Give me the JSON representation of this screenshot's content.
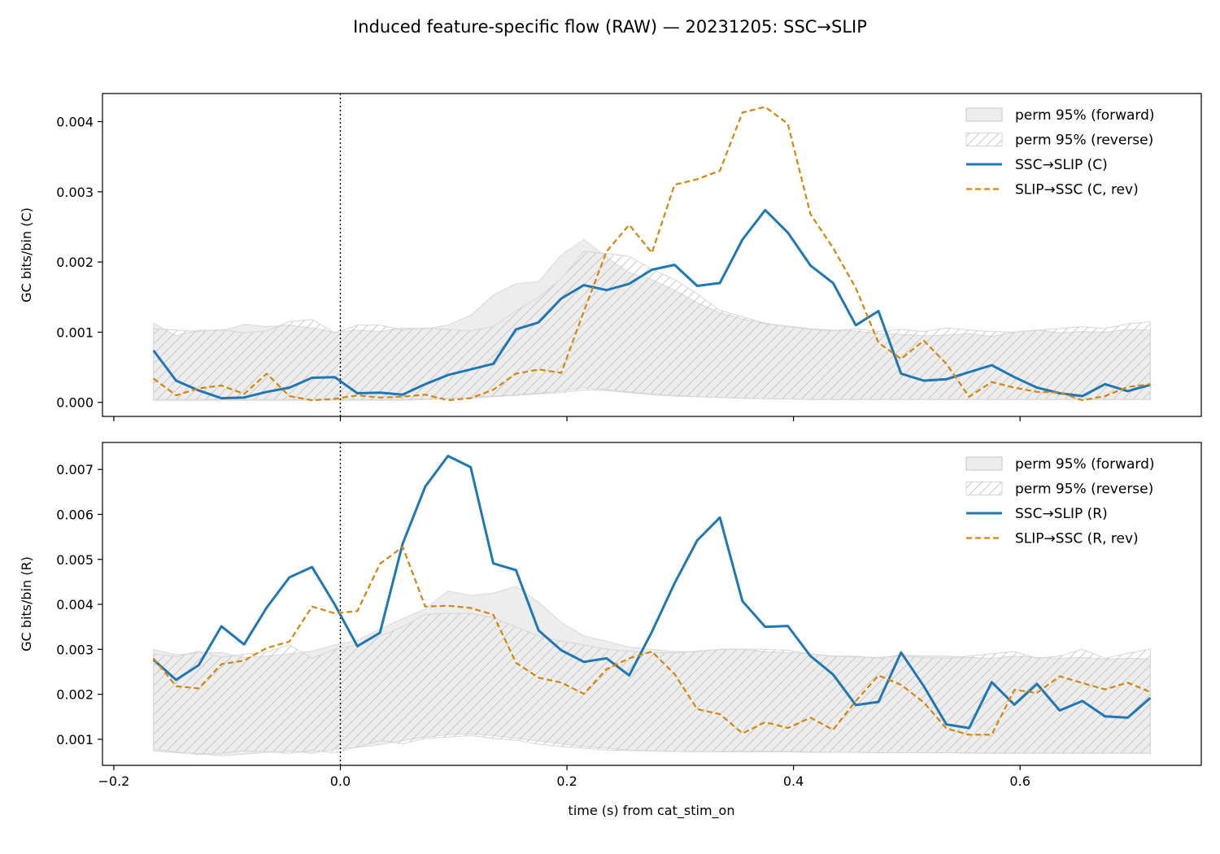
{
  "figure": {
    "title": "Induced feature-specific flow (RAW) — 20231205: SSC→SLIP",
    "xlabel": "time (s) from cat_stim_on"
  },
  "chart_data": [
    {
      "type": "line",
      "ylabel": "GC bits/bin (C)",
      "xlim": [
        -0.21,
        0.76
      ],
      "ylim": [
        -0.0002,
        0.0044
      ],
      "x_ticks": [
        -0.2,
        0.0,
        0.2,
        0.4,
        0.6
      ],
      "x_tick_labels": [
        "",
        "",
        "",
        "",
        ""
      ],
      "y_ticks": [
        0.0,
        0.001,
        0.002,
        0.003,
        0.004
      ],
      "y_tick_labels": [
        "0.000",
        "0.001",
        "0.002",
        "0.003",
        "0.004"
      ],
      "vline_x": 0.0,
      "legend_position": "upper-right",
      "x": [
        -0.165,
        -0.145,
        -0.125,
        -0.105,
        -0.085,
        -0.065,
        -0.045,
        -0.025,
        -0.005,
        0.015,
        0.035,
        0.055,
        0.075,
        0.095,
        0.115,
        0.135,
        0.155,
        0.175,
        0.195,
        0.215,
        0.235,
        0.255,
        0.275,
        0.295,
        0.315,
        0.335,
        0.355,
        0.375,
        0.395,
        0.415,
        0.435,
        0.455,
        0.475,
        0.495,
        0.515,
        0.535,
        0.555,
        0.575,
        0.595,
        0.615,
        0.635,
        0.655,
        0.675,
        0.695,
        0.715
      ],
      "bands": [
        {
          "name": "perm 95% (forward)",
          "style": "fill",
          "lower": [
            4e-05,
            4e-05,
            4e-05,
            4e-05,
            4e-05,
            4e-05,
            4e-05,
            4e-05,
            4e-05,
            4e-05,
            4e-05,
            4e-05,
            5e-05,
            6e-05,
            7e-05,
            9e-05,
            0.00011,
            0.00013,
            0.00016,
            0.00021,
            0.00018,
            0.00015,
            0.00012,
            0.0001,
            8e-05,
            7e-05,
            6e-05,
            5e-05,
            5e-05,
            4e-05,
            4e-05,
            4e-05,
            4e-05,
            4e-05,
            4e-05,
            4e-05,
            4e-05,
            4e-05,
            4e-05,
            4e-05,
            4e-05,
            4e-05,
            4e-05,
            4e-05,
            4e-05
          ],
          "upper": [
            0.00113,
            0.00095,
            0.00103,
            0.00102,
            0.00111,
            0.00108,
            0.0011,
            0.00106,
            0.001,
            0.00103,
            0.00101,
            0.00106,
            0.00105,
            0.0011,
            0.00124,
            0.00153,
            0.00169,
            0.00172,
            0.0021,
            0.00232,
            0.00207,
            0.00185,
            0.00175,
            0.0016,
            0.00142,
            0.00128,
            0.00119,
            0.00112,
            0.00109,
            0.00105,
            0.00103,
            0.00102,
            0.00098,
            0.00097,
            0.00095,
            0.00096,
            0.00098,
            0.00094,
            0.001,
            0.00103,
            0.00099,
            0.00101,
            0.001,
            0.00104,
            0.00103
          ]
        },
        {
          "name": "perm 95% (reverse)",
          "style": "hatch",
          "lower": [
            3e-05,
            3e-05,
            3e-05,
            3e-05,
            3e-05,
            3e-05,
            3e-05,
            3e-05,
            3e-05,
            3e-05,
            3e-05,
            3e-05,
            4e-05,
            5e-05,
            6e-05,
            8e-05,
            0.0001,
            0.00012,
            0.00014,
            0.00018,
            0.00017,
            0.00014,
            0.00011,
            9e-05,
            8e-05,
            7e-05,
            6e-05,
            5e-05,
            5e-05,
            4e-05,
            4e-05,
            4e-05,
            4e-05,
            4e-05,
            4e-05,
            4e-05,
            4e-05,
            4e-05,
            4e-05,
            4e-05,
            4e-05,
            4e-05,
            4e-05,
            4e-05,
            4e-05
          ],
          "upper": [
            0.00105,
            0.00103,
            0.00101,
            0.00104,
            0.00099,
            0.00102,
            0.00115,
            0.00118,
            0.00099,
            0.0011,
            0.0011,
            0.00103,
            0.00106,
            0.00104,
            0.00102,
            0.00108,
            0.0013,
            0.0015,
            0.00176,
            0.00215,
            0.00212,
            0.00208,
            0.0019,
            0.00175,
            0.00155,
            0.00131,
            0.00122,
            0.00113,
            0.00108,
            0.00104,
            0.00102,
            0.00105,
            0.00101,
            0.00104,
            0.00101,
            0.00106,
            0.00103,
            0.00101,
            0.001,
            0.00103,
            0.00105,
            0.00108,
            0.00105,
            0.00112,
            0.00115
          ]
        }
      ],
      "series": [
        {
          "name": "SSC→SLIP (C)",
          "color": "#1f77b4",
          "dash": "solid",
          "values": [
            0.00074,
            0.00031,
            0.00017,
            6e-05,
            7e-05,
            0.00015,
            0.00021,
            0.00035,
            0.00036,
            0.00013,
            0.00014,
            0.00011,
            0.00026,
            0.00039,
            0.00047,
            0.00055,
            0.00104,
            0.00114,
            0.00148,
            0.00167,
            0.0016,
            0.00169,
            0.00189,
            0.00196,
            0.00166,
            0.0017,
            0.00232,
            0.00274,
            0.00242,
            0.00195,
            0.0017,
            0.0011,
            0.0013,
            0.00041,
            0.00031,
            0.00033,
            0.00043,
            0.00053,
            0.00036,
            0.00021,
            0.00013,
            9e-05,
            0.00026,
            0.00016,
            0.00025
          ]
        },
        {
          "name": "SLIP→SSC (C, rev)",
          "color": "#d4860b",
          "dash": "dashed",
          "values": [
            0.00034,
            0.0001,
            0.0002,
            0.00024,
            0.00012,
            0.00041,
            9e-05,
            3e-05,
            5e-05,
            0.0001,
            7e-05,
            8e-05,
            0.00011,
            3e-05,
            6e-05,
            0.00018,
            0.00041,
            0.00047,
            0.00042,
            0.0013,
            0.00215,
            0.00253,
            0.00213,
            0.0031,
            0.00318,
            0.0033,
            0.00413,
            0.00421,
            0.00397,
            0.00268,
            0.0022,
            0.00163,
            0.00085,
            0.00062,
            0.00088,
            0.00055,
            8e-05,
            0.00029,
            0.00021,
            0.00015,
            0.00014,
            3e-05,
            9e-05,
            0.00022,
            0.00026
          ]
        }
      ]
    },
    {
      "type": "line",
      "ylabel": "GC bits/bin (R)",
      "xlim": [
        -0.21,
        0.76
      ],
      "ylim": [
        0.00042,
        0.0076
      ],
      "x_ticks": [
        -0.2,
        0.0,
        0.2,
        0.4,
        0.6
      ],
      "x_tick_labels": [
        "−0.2",
        "0.0",
        "0.2",
        "0.4",
        "0.6"
      ],
      "y_ticks": [
        0.001,
        0.002,
        0.003,
        0.004,
        0.005,
        0.006,
        0.007
      ],
      "y_tick_labels": [
        "0.001",
        "0.002",
        "0.003",
        "0.004",
        "0.005",
        "0.006",
        "0.007"
      ],
      "vline_x": 0.0,
      "legend_position": "upper-right",
      "x": [
        -0.165,
        -0.145,
        -0.125,
        -0.105,
        -0.085,
        -0.065,
        -0.045,
        -0.025,
        -0.005,
        0.015,
        0.035,
        0.055,
        0.075,
        0.095,
        0.115,
        0.135,
        0.155,
        0.175,
        0.195,
        0.215,
        0.235,
        0.255,
        0.275,
        0.295,
        0.315,
        0.335,
        0.355,
        0.375,
        0.395,
        0.415,
        0.435,
        0.455,
        0.475,
        0.495,
        0.515,
        0.535,
        0.555,
        0.575,
        0.595,
        0.615,
        0.635,
        0.655,
        0.675,
        0.695,
        0.715
      ],
      "bands": [
        {
          "name": "perm 95% (forward)",
          "style": "fill",
          "lower": [
            0.00074,
            0.0007,
            0.00068,
            0.00063,
            0.00067,
            0.00071,
            0.00074,
            0.00069,
            0.00078,
            0.00082,
            0.00088,
            0.00097,
            0.00105,
            0.0011,
            0.00112,
            0.00108,
            0.00102,
            0.00096,
            0.0009,
            0.00083,
            0.0008,
            0.00076,
            0.00074,
            0.00073,
            0.00072,
            0.00073,
            0.00074,
            0.00073,
            0.00073,
            0.00072,
            0.00071,
            0.00071,
            0.0007,
            0.0007,
            0.0007,
            0.0007,
            0.00069,
            0.00069,
            0.00069,
            0.00069,
            0.00069,
            0.00069,
            0.00069,
            0.00069,
            0.00069
          ],
          "upper": [
            0.003,
            0.00288,
            0.00292,
            0.00293,
            0.00282,
            0.00285,
            0.0029,
            0.00296,
            0.0031,
            0.0032,
            0.00345,
            0.00368,
            0.0039,
            0.0043,
            0.0042,
            0.00425,
            0.0044,
            0.00405,
            0.0036,
            0.0033,
            0.00318,
            0.00305,
            0.003,
            0.00295,
            0.00295,
            0.003,
            0.003,
            0.00295,
            0.00293,
            0.0029,
            0.00285,
            0.00285,
            0.0028,
            0.00288,
            0.00285,
            0.00285,
            0.00282,
            0.0028,
            0.00285,
            0.00282,
            0.0028,
            0.00282,
            0.00278,
            0.0028,
            0.00279
          ]
        },
        {
          "name": "perm 95% (reverse)",
          "style": "hatch",
          "lower": [
            0.00078,
            0.00072,
            0.00066,
            0.00069,
            0.00074,
            0.00072,
            0.00069,
            0.00075,
            0.0007,
            0.00083,
            0.00097,
            0.0009,
            0.00102,
            0.00105,
            0.00108,
            0.00102,
            0.00098,
            0.00089,
            0.00084,
            0.0008,
            0.00076,
            0.00075,
            0.00074,
            0.00073,
            0.00073,
            0.00072,
            0.00072,
            0.00072,
            0.00072,
            0.00071,
            0.00071,
            0.00071,
            0.0007,
            0.0007,
            0.0007,
            0.0007,
            0.0007,
            0.00069,
            0.00069,
            0.00069,
            0.00069,
            0.00069,
            0.00069,
            0.00069,
            0.00069
          ],
          "upper": [
            0.0029,
            0.00284,
            0.00296,
            0.00282,
            0.00289,
            0.00294,
            0.0031,
            0.0028,
            0.003,
            0.0031,
            0.0033,
            0.0035,
            0.00378,
            0.0038,
            0.0038,
            0.0037,
            0.0035,
            0.0033,
            0.00318,
            0.0031,
            0.003,
            0.00296,
            0.00293,
            0.00292,
            0.00296,
            0.003,
            0.003,
            0.003,
            0.00298,
            0.0029,
            0.00285,
            0.00283,
            0.00282,
            0.00285,
            0.00282,
            0.0028,
            0.00285,
            0.0029,
            0.00295,
            0.0028,
            0.00285,
            0.003,
            0.0028,
            0.00291,
            0.003
          ]
        }
      ],
      "series": [
        {
          "name": "SSC→SLIP (R)",
          "color": "#1f77b4",
          "dash": "solid",
          "values": [
            0.00277,
            0.00232,
            0.00265,
            0.00351,
            0.00311,
            0.00393,
            0.0046,
            0.00483,
            0.004,
            0.00307,
            0.00337,
            0.00535,
            0.00662,
            0.0073,
            0.00705,
            0.00491,
            0.00476,
            0.00342,
            0.00298,
            0.00272,
            0.0028,
            0.00242,
            0.00339,
            0.00447,
            0.00542,
            0.00593,
            0.00407,
            0.0035,
            0.00352,
            0.00285,
            0.00244,
            0.00176,
            0.00183,
            0.00293,
            0.00218,
            0.00133,
            0.00125,
            0.00227,
            0.00177,
            0.00223,
            0.00164,
            0.00185,
            0.00151,
            0.00148,
            0.00192
          ]
        },
        {
          "name": "SLIP→SSC (R, rev)",
          "color": "#d4860b",
          "dash": "dashed",
          "values": [
            0.0028,
            0.00218,
            0.00213,
            0.00267,
            0.00275,
            0.00303,
            0.00317,
            0.00395,
            0.0038,
            0.00385,
            0.0049,
            0.00528,
            0.00395,
            0.00397,
            0.00392,
            0.00377,
            0.0027,
            0.00237,
            0.00226,
            0.00201,
            0.00256,
            0.0028,
            0.00295,
            0.00245,
            0.00167,
            0.00156,
            0.00113,
            0.00138,
            0.00125,
            0.00148,
            0.00121,
            0.00185,
            0.00242,
            0.00221,
            0.00182,
            0.00124,
            0.0011,
            0.0011,
            0.0021,
            0.00203,
            0.0024,
            0.00225,
            0.00211,
            0.00226,
            0.00205
          ]
        }
      ]
    }
  ]
}
